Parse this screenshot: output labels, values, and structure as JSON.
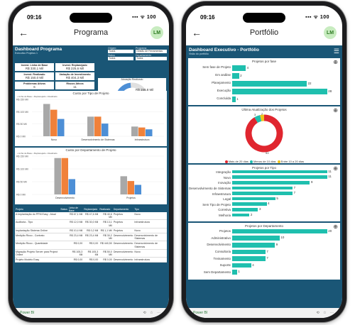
{
  "left": {
    "status_time": "09:16",
    "status_icons": "▪▪▪ ᯤ 100",
    "app_title": "Programa",
    "avatar": "LM",
    "dash_title": "Dashboard Programa",
    "dash_subtitle": "Executivo Projetos 1",
    "filters": [
      {
        "label": "Origem",
        "value": "Todos"
      },
      {
        "label": "Programa",
        "value": "Gestão de Ferramentas Imp..."
      },
      {
        "label": "Status",
        "value": "Todos"
      },
      {
        "label": "Departamento",
        "value": "Todos"
      }
    ],
    "kpis": [
      {
        "label": "Invest. Linha de Base",
        "value": "R$ 330,1 Mil"
      },
      {
        "label": "Invest. Replanejado",
        "value": "R$ 225,6 Mil"
      },
      {
        "label": "Invest. Realizado",
        "value": "R$ 150,0 Mil"
      },
      {
        "label": "Variação de Investimento",
        "value": "R$ 404,3 Mil"
      },
      {
        "label": "Problemas Ativos",
        "value": "6"
      },
      {
        "label": "Riscos Ativos",
        "value": "11"
      }
    ],
    "gauge": {
      "title": "Alocação Realizado",
      "value": "R$ 156,8 Mil",
      "min": "R$ 0,0 Mil",
      "max": "R$ 330,1 Mil",
      "fraction": 0.47
    },
    "chart1": {
      "title": "Custo por Tipo de Projeto",
      "legend": "• Linha de Base  • Replanejado  • Realizado",
      "y_ticks": [
        "R$ 150 Mil",
        "R$ 100 Mil",
        "R$ 50 Mil",
        "R$ 0 Mil"
      ],
      "categories": [
        "Novo",
        "Desenvolvimento de Sistemas",
        "Infraestrutura"
      ],
      "series": [
        {
          "name": "Linha de Base",
          "color": "#a8a8a8",
          "values": [
            140,
            85,
            42
          ]
        },
        {
          "name": "Replanejado",
          "color": "#f0813a",
          "values": [
            115,
            85,
            38
          ]
        },
        {
          "name": "Realizado",
          "color": "#4d8fd6",
          "values": [
            75,
            55,
            30
          ]
        }
      ],
      "ymax": 160
    },
    "chart2": {
      "title": "Custo por Departamento de Projeto",
      "legend": "• Linha de Base  • Replanejado  • Realizado",
      "y_ticks": [
        "R$ 150 Mil",
        "R$ 100 Mil",
        "R$ 50 Mil",
        "R$ 0 Mil"
      ],
      "categories": [
        "Desenvolvimento",
        "Projetos"
      ],
      "series": [
        {
          "name": "Linha de Base",
          "color": "#a8a8a8",
          "values": [
            190,
            95
          ]
        },
        {
          "name": "Replanejado",
          "color": "#f0813a",
          "values": [
            190,
            70
          ]
        },
        {
          "name": "Realizado",
          "color": "#4d8fd6",
          "values": [
            80,
            50
          ]
        }
      ],
      "ymax": 200
    },
    "table": {
      "headers": [
        "Projeto",
        "Status",
        "Linha de Base",
        "Replanejado",
        "Realizado",
        "Departamento",
        "Tipo"
      ],
      "rows": [
        [
          "A Implantação do PPM Easy - Atual",
          "",
          "R$ 67,1 Mil",
          "R$ 47,6 Mil",
          "R$ 40,6 Mil",
          "Projetos",
          "Novo"
        ],
        [
          "Auditoria - Tipo",
          "",
          "R$ 12,0 Mil",
          "R$ 30,0 Mil",
          "R$ 13,1 Mil",
          "Projetos",
          "Infraestrutura"
        ],
        [
          "Implantação Sistema Online",
          "",
          "R$ 10,4 Mil",
          "R$ 0,2 Mil",
          "R$ 1,1 Mil",
          "Projetos",
          "Novo"
        ],
        [
          "Medição Ricco - Contrato",
          "",
          "R$ 23,4 Mil",
          "R$ 23,4 Mil",
          "R$ 30,2 Mil",
          "Desenvolvimento",
          "Desenvolvimento de Sistemas"
        ],
        [
          "Medição Ricco - Quantidade",
          "",
          "R$ 0,00",
          "R$ 0,00",
          "R$ 440,50",
          "Desenvolvimento",
          "Desenvolvimento de Sistemas"
        ],
        [
          "Migração Projeto Server para Project Online",
          "",
          "R$ 105,3 Mil",
          "R$ 105,3 Mil",
          "R$ 50,0 Mil",
          "Desenvolvimento",
          "Novo"
        ],
        [
          "Projeto Modelo Easy",
          "",
          "R$ 0,00",
          "R$ 0,00",
          "R$ 0,00",
          "Desenvolvimento",
          "Infraestrutura"
        ]
      ]
    },
    "bottom_text": "Power BI",
    "bottom_icons": "⟲ ☆ ⋯"
  },
  "right": {
    "status_time": "09:16",
    "status_icons": "▪▪▪ ᯤ 100",
    "app_title": "Portfólio",
    "avatar": "LM",
    "dash_title": "Dashboard Executivo - Portfólio",
    "dash_subtitle": "Visão do portfólio",
    "fase": {
      "title": "Projetos por fase",
      "items": [
        {
          "label": "Sem fase de Projeto",
          "value": 4
        },
        {
          "label": "Em análise",
          "value": 2
        },
        {
          "label": "Planejamento",
          "value": 22
        },
        {
          "label": "Execução",
          "value": 28
        },
        {
          "label": "Concluída",
          "value": 1
        }
      ],
      "max": 28
    },
    "pie": {
      "title": "Última Atualização dos Projetos",
      "slices": [
        {
          "name": "Mais de 20 dias",
          "value": 53,
          "color": "#e0262f"
        },
        {
          "name": "Menos de 10 dias",
          "value": 3,
          "color": "#1fbfae"
        },
        {
          "name": "Entre 10 a 20 dias",
          "value": 2,
          "color": "#f0c419"
        }
      ],
      "labels": [
        "3",
        "2",
        "53"
      ]
    },
    "tipo": {
      "title": "Projetos por Tipo",
      "items": [
        {
          "label": "Integração",
          "value": 11
        },
        {
          "label": "Novo",
          "value": 11
        },
        {
          "label": "Inovação",
          "value": 9
        },
        {
          "label": "Desenvolvimento de Sistemas",
          "value": 7
        },
        {
          "label": "Infraestrutura",
          "value": 7
        },
        {
          "label": "Legal",
          "value": 5
        },
        {
          "label": "Sem Tipo de Projeto",
          "value": 4
        },
        {
          "label": "Corretiva",
          "value": 3
        },
        {
          "label": "Melhoria",
          "value": 2
        }
      ],
      "max": 11
    },
    "depto": {
      "title": "Projetos por Departamento",
      "items": [
        {
          "label": "Projetos",
          "value": 20
        },
        {
          "label": "Administrativo",
          "value": 10
        },
        {
          "label": "Desenvolvimento",
          "value": 9
        },
        {
          "label": "Consultoria",
          "value": 7
        },
        {
          "label": "Treinamento",
          "value": 7
        },
        {
          "label": "Suporte",
          "value": 4
        },
        {
          "label": "Sem Departamento",
          "value": 1
        }
      ],
      "max": 20
    },
    "bottom_text": "Power BI",
    "bottom_icons": "⟲ ☆ ⋯"
  }
}
